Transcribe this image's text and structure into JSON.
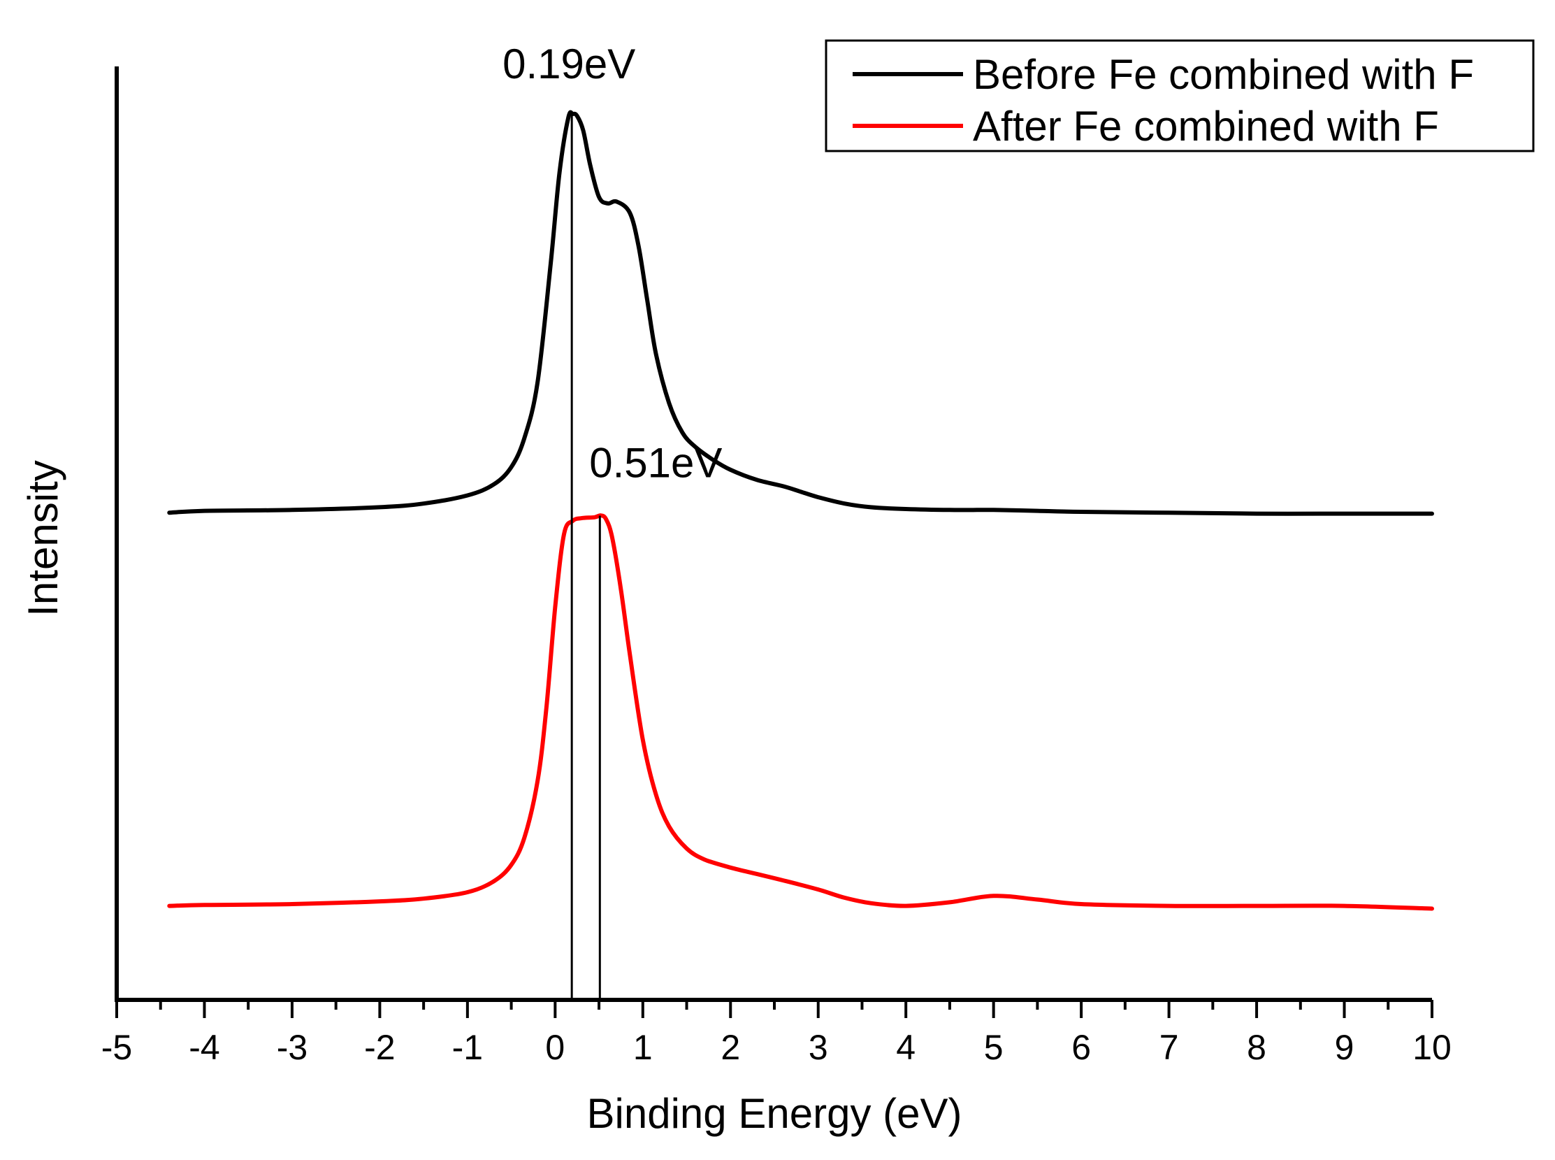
{
  "chart_data": {
    "type": "line",
    "title": "",
    "xlabel": "Binding Energy (eV)",
    "ylabel": "Intensity",
    "xlim": [
      -5,
      10
    ],
    "ylim": [
      0,
      105
    ],
    "x_ticks": [
      -5,
      -4,
      -3,
      -2,
      -1,
      0,
      1,
      2,
      3,
      4,
      5,
      6,
      7,
      8,
      9,
      10
    ],
    "x_tick_labels": [
      "-5",
      "-4",
      "-3",
      "-2",
      "-1",
      "0",
      "1",
      "2",
      "3",
      "4",
      "5",
      "6",
      "7",
      "8",
      "9",
      "10"
    ],
    "y_ticks_shown": false,
    "grid": false,
    "legend_position": "top-right",
    "series": [
      {
        "name": "Before Fe combined with F",
        "color": "#000000",
        "x": [
          -4.4,
          -4.0,
          -3.0,
          -2.0,
          -1.5,
          -1.0,
          -0.7,
          -0.5,
          -0.35,
          -0.2,
          -0.05,
          0.05,
          0.15,
          0.2,
          0.25,
          0.32,
          0.4,
          0.5,
          0.6,
          0.7,
          0.85,
          0.95,
          1.05,
          1.15,
          1.3,
          1.45,
          1.6,
          1.8,
          2.0,
          2.3,
          2.6,
          2.8,
          3.0,
          3.3,
          3.6,
          4.0,
          4.5,
          5.0,
          5.5,
          6.0,
          7.0,
          8.0,
          9.0,
          10.0
        ],
        "values": [
          53.4,
          53.6,
          53.7,
          54.0,
          54.4,
          55.3,
          56.5,
          58.4,
          61.6,
          67.7,
          80.8,
          90.7,
          96.7,
          97.1,
          96.9,
          95.3,
          91.5,
          88.0,
          87.3,
          87.5,
          86.3,
          82.7,
          76.7,
          70.8,
          65.4,
          62.2,
          60.6,
          59.2,
          58.1,
          57.0,
          56.3,
          55.7,
          55.1,
          54.4,
          54.0,
          53.8,
          53.7,
          53.7,
          53.6,
          53.5,
          53.4,
          53.3,
          53.3,
          53.3
        ]
      },
      {
        "name": "After Fe combined with F",
        "color": "#ff0000",
        "x": [
          -4.4,
          -4.0,
          -3.0,
          -2.0,
          -1.5,
          -1.0,
          -0.7,
          -0.5,
          -0.35,
          -0.2,
          -0.1,
          0.0,
          0.1,
          0.2,
          0.3,
          0.45,
          0.52,
          0.58,
          0.65,
          0.75,
          0.85,
          1.0,
          1.15,
          1.3,
          1.5,
          1.7,
          2.0,
          2.3,
          2.6,
          3.0,
          3.3,
          3.6,
          4.0,
          4.5,
          5.0,
          5.5,
          6.0,
          7.0,
          8.0,
          9.0,
          10.0
        ],
        "values": [
          10.3,
          10.4,
          10.5,
          10.8,
          11.1,
          11.8,
          13.0,
          14.8,
          17.8,
          24.0,
          32.0,
          43.0,
          51.0,
          52.5,
          52.8,
          52.9,
          53.1,
          52.7,
          50.7,
          45.0,
          38.0,
          28.5,
          22.5,
          19.0,
          16.6,
          15.4,
          14.5,
          13.8,
          13.1,
          12.1,
          11.2,
          10.6,
          10.3,
          10.7,
          11.4,
          11.0,
          10.5,
          10.3,
          10.3,
          10.3,
          10.0
        ]
      }
    ],
    "annotations": [
      {
        "text": "0.19eV",
        "x": 0.19,
        "series": 0
      },
      {
        "text": "0.51eV",
        "x": 0.51,
        "series": 1
      }
    ],
    "colors": {
      "background": "#ffffff",
      "axis": "#000000"
    }
  }
}
